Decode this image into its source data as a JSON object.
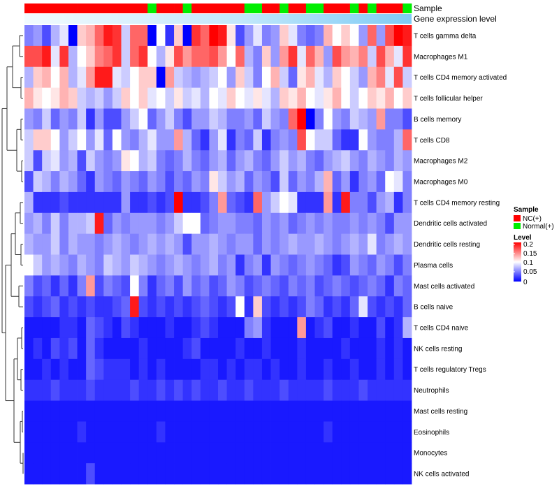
{
  "chart_data": {
    "type": "heatmap",
    "title": "",
    "annotation_labels": {
      "sample": "Sample",
      "gene": "Gene expression level"
    },
    "rows": [
      {
        "name": "T cells gamma delta",
        "values": [
          0.05,
          0.06,
          0.03,
          0.07,
          0.09,
          0.0,
          0.12,
          0.13,
          0.16,
          0.19,
          0.18,
          0.08,
          0.16,
          0.16,
          0.0,
          0.1,
          0.02,
          0.12,
          0.0,
          0.18,
          0.16,
          0.2,
          0.19,
          0.11,
          0.03,
          0.06,
          0.09,
          0.05,
          0.06,
          0.12,
          0.09,
          0.05,
          0.04,
          0.05,
          0.13,
          0.1,
          0.12,
          0.1,
          0.06,
          0.16,
          0.06,
          0.17,
          0.2,
          0.19
        ]
      },
      {
        "name": "Macrophages M1",
        "values": [
          0.17,
          0.17,
          0.19,
          0.09,
          0.18,
          0.07,
          0.1,
          0.12,
          0.15,
          0.16,
          0.18,
          0.08,
          0.16,
          0.18,
          0.1,
          0.07,
          0.11,
          0.17,
          0.14,
          0.16,
          0.16,
          0.17,
          0.14,
          0.1,
          0.16,
          0.07,
          0.05,
          0.12,
          0.06,
          0.14,
          0.18,
          0.09,
          0.16,
          0.13,
          0.06,
          0.17,
          0.14,
          0.13,
          0.15,
          0.08,
          0.17,
          0.13,
          0.09,
          0.18
        ]
      },
      {
        "name": "T cells CD4 memory activated",
        "values": [
          0.07,
          0.12,
          0.13,
          0.1,
          0.13,
          0.07,
          0.09,
          0.14,
          0.19,
          0.19,
          0.09,
          0.08,
          0.1,
          0.12,
          0.12,
          0.0,
          0.14,
          0.08,
          0.07,
          0.06,
          0.07,
          0.08,
          0.1,
          0.06,
          0.12,
          0.08,
          0.05,
          0.1,
          0.13,
          0.08,
          0.04,
          0.11,
          0.13,
          0.09,
          0.07,
          0.12,
          0.1,
          0.08,
          0.06,
          0.13,
          0.15,
          0.09,
          0.17,
          0.08
        ]
      },
      {
        "name": "T cells follicular helper",
        "values": [
          0.13,
          0.11,
          0.1,
          0.11,
          0.13,
          0.12,
          0.08,
          0.07,
          0.08,
          0.06,
          0.08,
          0.12,
          0.1,
          0.12,
          0.09,
          0.1,
          0.08,
          0.11,
          0.08,
          0.09,
          0.07,
          0.1,
          0.09,
          0.12,
          0.1,
          0.09,
          0.11,
          0.09,
          0.07,
          0.12,
          0.11,
          0.13,
          0.1,
          0.09,
          0.11,
          0.13,
          0.1,
          0.08,
          0.1,
          0.12,
          0.11,
          0.13,
          0.1,
          0.12
        ]
      },
      {
        "name": "B cells memory",
        "values": [
          0.06,
          0.05,
          0.08,
          0.04,
          0.06,
          0.05,
          0.08,
          0.02,
          0.06,
          0.03,
          0.03,
          0.06,
          0.08,
          0.1,
          0.04,
          0.06,
          0.08,
          0.05,
          0.03,
          0.06,
          0.06,
          0.08,
          0.07,
          0.05,
          0.05,
          0.06,
          0.04,
          0.08,
          0.06,
          0.05,
          0.16,
          0.2,
          0.0,
          0.05,
          0.1,
          0.06,
          0.05,
          0.08,
          0.07,
          0.06,
          0.14,
          0.05,
          0.05,
          0.03
        ]
      },
      {
        "name": "T cells CD8",
        "values": [
          0.08,
          0.12,
          0.12,
          0.1,
          0.06,
          0.08,
          0.1,
          0.06,
          0.09,
          0.04,
          0.1,
          0.06,
          0.05,
          0.07,
          0.09,
          0.06,
          0.06,
          0.14,
          0.07,
          0.04,
          0.02,
          0.06,
          0.09,
          0.02,
          0.05,
          0.04,
          0.08,
          0.02,
          0.05,
          0.06,
          0.05,
          0.17,
          0.1,
          0.08,
          0.08,
          0.04,
          0.02,
          0.02,
          0.1,
          0.06,
          0.05,
          0.05,
          0.07,
          0.16
        ]
      },
      {
        "name": "Macrophages M2",
        "values": [
          0.08,
          0.03,
          0.08,
          0.09,
          0.06,
          0.07,
          0.03,
          0.08,
          0.06,
          0.05,
          0.06,
          0.11,
          0.1,
          0.07,
          0.08,
          0.05,
          0.04,
          0.05,
          0.07,
          0.05,
          0.04,
          0.06,
          0.07,
          0.04,
          0.06,
          0.07,
          0.05,
          0.04,
          0.06,
          0.08,
          0.06,
          0.07,
          0.05,
          0.04,
          0.06,
          0.07,
          0.08,
          0.06,
          0.05,
          0.07,
          0.06,
          0.05,
          0.07,
          0.06
        ]
      },
      {
        "name": "Macrophages M0",
        "values": [
          0.03,
          0.08,
          0.07,
          0.05,
          0.07,
          0.06,
          0.04,
          0.02,
          0.06,
          0.05,
          0.04,
          0.06,
          0.05,
          0.04,
          0.06,
          0.05,
          0.03,
          0.05,
          0.04,
          0.06,
          0.05,
          0.11,
          0.08,
          0.06,
          0.07,
          0.04,
          0.06,
          0.05,
          0.03,
          0.08,
          0.04,
          0.06,
          0.05,
          0.07,
          0.13,
          0.04,
          0.06,
          0.02,
          0.05,
          0.06,
          0.04,
          0.1,
          0.09,
          0.05
        ]
      },
      {
        "name": "T cells CD4 memory resting",
        "values": [
          0.07,
          0.02,
          0.02,
          0.02,
          0.03,
          0.02,
          0.02,
          0.02,
          0.02,
          0.02,
          0.02,
          0.06,
          0.02,
          0.02,
          0.03,
          0.02,
          0.03,
          0.2,
          0.02,
          0.02,
          0.03,
          0.05,
          0.14,
          0.04,
          0.03,
          0.02,
          0.16,
          0.06,
          0.08,
          0.1,
          0.09,
          0.02,
          0.02,
          0.02,
          0.14,
          0.02,
          0.19,
          0.05,
          0.05,
          0.03,
          0.06,
          0.07,
          0.02,
          0.05
        ]
      },
      {
        "name": "Dendritic cells activated",
        "values": [
          0.06,
          0.07,
          0.05,
          0.08,
          0.05,
          0.07,
          0.07,
          0.08,
          0.19,
          0.04,
          0.06,
          0.05,
          0.06,
          0.06,
          0.06,
          0.05,
          0.06,
          0.08,
          0.1,
          0.1,
          0.04,
          0.05,
          0.06,
          0.06,
          0.05,
          0.05,
          0.04,
          0.06,
          0.05,
          0.06,
          0.04,
          0.05,
          0.06,
          0.05,
          0.06,
          0.05,
          0.05,
          0.06,
          0.05,
          0.06,
          0.05,
          0.03,
          0.06,
          0.06
        ]
      },
      {
        "name": "Dendritic cells resting",
        "values": [
          0.07,
          0.06,
          0.06,
          0.08,
          0.05,
          0.07,
          0.06,
          0.06,
          0.05,
          0.06,
          0.07,
          0.06,
          0.05,
          0.06,
          0.07,
          0.06,
          0.07,
          0.06,
          0.03,
          0.06,
          0.06,
          0.07,
          0.06,
          0.05,
          0.06,
          0.06,
          0.04,
          0.06,
          0.05,
          0.06,
          0.07,
          0.06,
          0.06,
          0.07,
          0.06,
          0.05,
          0.06,
          0.07,
          0.06,
          0.09,
          0.05,
          0.06,
          0.07,
          0.06
        ]
      },
      {
        "name": "Plasma cells",
        "values": [
          0.1,
          0.08,
          0.06,
          0.07,
          0.06,
          0.05,
          0.07,
          0.06,
          0.05,
          0.08,
          0.07,
          0.06,
          0.08,
          0.07,
          0.06,
          0.05,
          0.06,
          0.07,
          0.06,
          0.05,
          0.06,
          0.07,
          0.05,
          0.06,
          0.02,
          0.05,
          0.06,
          0.02,
          0.06,
          0.05,
          0.04,
          0.05,
          0.06,
          0.05,
          0.04,
          0.02,
          0.03,
          0.06,
          0.05,
          0.04,
          0.06,
          0.05,
          0.03,
          0.05
        ]
      },
      {
        "name": "Mast cells activated",
        "values": [
          0.05,
          0.03,
          0.04,
          0.02,
          0.04,
          0.02,
          0.05,
          0.14,
          0.03,
          0.05,
          0.04,
          0.03,
          0.1,
          0.05,
          0.02,
          0.04,
          0.05,
          0.03,
          0.06,
          0.04,
          0.05,
          0.03,
          0.04,
          0.06,
          0.05,
          0.03,
          0.04,
          0.05,
          0.04,
          0.03,
          0.05,
          0.04,
          0.05,
          0.03,
          0.04,
          0.05,
          0.04,
          0.03,
          0.04,
          0.05,
          0.04,
          0.02,
          0.05,
          0.04
        ]
      },
      {
        "name": "B cells naive",
        "values": [
          0.03,
          0.02,
          0.03,
          0.04,
          0.02,
          0.03,
          0.02,
          0.03,
          0.02,
          0.02,
          0.03,
          0.04,
          0.19,
          0.03,
          0.02,
          0.03,
          0.02,
          0.03,
          0.02,
          0.03,
          0.04,
          0.03,
          0.02,
          0.03,
          0.1,
          0.02,
          0.12,
          0.03,
          0.02,
          0.03,
          0.02,
          0.03,
          0.05,
          0.04,
          0.02,
          0.03,
          0.02,
          0.04,
          0.09,
          0.03,
          0.02,
          0.03,
          0.02,
          0.04
        ]
      },
      {
        "name": "T cells CD4 naive",
        "values": [
          0.01,
          0.01,
          0.01,
          0.01,
          0.02,
          0.02,
          0.01,
          0.04,
          0.03,
          0.02,
          0.01,
          0.03,
          0.02,
          0.01,
          0.01,
          0.01,
          0.02,
          0.01,
          0.01,
          0.02,
          0.03,
          0.02,
          0.01,
          0.01,
          0.01,
          0.05,
          0.06,
          0.02,
          0.01,
          0.01,
          0.01,
          0.14,
          0.01,
          0.02,
          0.03,
          0.01,
          0.01,
          0.02,
          0.01,
          0.01,
          0.03,
          0.01,
          0.02,
          0.07
        ]
      },
      {
        "name": "NK cells resting",
        "values": [
          0.01,
          0.02,
          0.01,
          0.03,
          0.02,
          0.03,
          0.01,
          0.04,
          0.02,
          0.01,
          0.01,
          0.01,
          0.01,
          0.02,
          0.01,
          0.01,
          0.01,
          0.01,
          0.02,
          0.03,
          0.01,
          0.01,
          0.01,
          0.01,
          0.02,
          0.01,
          0.01,
          0.02,
          0.01,
          0.01,
          0.01,
          0.02,
          0.01,
          0.01,
          0.01,
          0.01,
          0.02,
          0.01,
          0.01,
          0.01,
          0.02,
          0.01,
          0.02,
          0.01
        ]
      },
      {
        "name": "T cells regulatory  Tregs",
        "values": [
          0.01,
          0.01,
          0.02,
          0.01,
          0.02,
          0.01,
          0.01,
          0.04,
          0.03,
          0.02,
          0.02,
          0.02,
          0.01,
          0.02,
          0.01,
          0.02,
          0.01,
          0.01,
          0.01,
          0.01,
          0.02,
          0.02,
          0.01,
          0.02,
          0.01,
          0.02,
          0.02,
          0.01,
          0.02,
          0.01,
          0.01,
          0.02,
          0.01,
          0.01,
          0.02,
          0.01,
          0.01,
          0.02,
          0.01,
          0.01,
          0.02,
          0.01,
          0.02,
          0.01
        ]
      },
      {
        "name": "Neutrophils",
        "values": [
          0.02,
          0.02,
          0.02,
          0.03,
          0.02,
          0.02,
          0.02,
          0.03,
          0.02,
          0.02,
          0.02,
          0.02,
          0.03,
          0.02,
          0.02,
          0.03,
          0.02,
          0.03,
          0.02,
          0.03,
          0.02,
          0.02,
          0.03,
          0.02,
          0.02,
          0.03,
          0.02,
          0.02,
          0.02,
          0.03,
          0.02,
          0.02,
          0.02,
          0.02,
          0.03,
          0.02,
          0.02,
          0.02,
          0.03,
          0.02,
          0.02,
          0.02,
          0.02,
          0.02
        ]
      },
      {
        "name": "Mast cells resting",
        "values": [
          0.01,
          0.01,
          0.01,
          0.01,
          0.01,
          0.01,
          0.01,
          0.01,
          0.01,
          0.01,
          0.01,
          0.01,
          0.01,
          0.01,
          0.01,
          0.01,
          0.01,
          0.01,
          0.01,
          0.01,
          0.01,
          0.01,
          0.01,
          0.01,
          0.01,
          0.01,
          0.01,
          0.01,
          0.01,
          0.01,
          0.01,
          0.01,
          0.01,
          0.01,
          0.01,
          0.01,
          0.01,
          0.01,
          0.01,
          0.01,
          0.01,
          0.01,
          0.01,
          0.01
        ]
      },
      {
        "name": "Eosinophils",
        "values": [
          0.01,
          0.01,
          0.01,
          0.01,
          0.01,
          0.01,
          0.02,
          0.01,
          0.01,
          0.01,
          0.01,
          0.01,
          0.01,
          0.01,
          0.01,
          0.02,
          0.01,
          0.01,
          0.01,
          0.01,
          0.01,
          0.01,
          0.01,
          0.01,
          0.01,
          0.01,
          0.01,
          0.01,
          0.01,
          0.01,
          0.01,
          0.01,
          0.01,
          0.01,
          0.02,
          0.01,
          0.01,
          0.01,
          0.01,
          0.01,
          0.01,
          0.01,
          0.01,
          0.01
        ]
      },
      {
        "name": "Monocytes",
        "values": [
          0.01,
          0.01,
          0.01,
          0.01,
          0.01,
          0.01,
          0.01,
          0.01,
          0.01,
          0.01,
          0.01,
          0.01,
          0.01,
          0.01,
          0.01,
          0.01,
          0.01,
          0.01,
          0.01,
          0.01,
          0.01,
          0.01,
          0.01,
          0.01,
          0.01,
          0.01,
          0.01,
          0.01,
          0.01,
          0.01,
          0.01,
          0.01,
          0.01,
          0.01,
          0.01,
          0.01,
          0.01,
          0.01,
          0.01,
          0.01,
          0.01,
          0.01,
          0.01,
          0.01
        ]
      },
      {
        "name": "NK cells activated",
        "values": [
          0.01,
          0.01,
          0.01,
          0.01,
          0.01,
          0.01,
          0.01,
          0.03,
          0.01,
          0.01,
          0.01,
          0.01,
          0.01,
          0.01,
          0.01,
          0.01,
          0.01,
          0.01,
          0.01,
          0.01,
          0.01,
          0.01,
          0.01,
          0.01,
          0.01,
          0.01,
          0.01,
          0.01,
          0.01,
          0.01,
          0.01,
          0.01,
          0.01,
          0.01,
          0.01,
          0.01,
          0.01,
          0.01,
          0.01,
          0.01,
          0.01,
          0.01,
          0.01,
          0.01
        ]
      }
    ],
    "sample_groups": [
      "NC",
      "NC",
      "NC",
      "NC",
      "NC",
      "NC",
      "NC",
      "NC",
      "NC",
      "NC",
      "NC",
      "NC",
      "NC",
      "NC",
      "Normal",
      "NC",
      "NC",
      "NC",
      "Normal",
      "NC",
      "NC",
      "NC",
      "NC",
      "NC",
      "NC",
      "Normal",
      "Normal",
      "NC",
      "NC",
      "Normal",
      "NC",
      "NC",
      "Normal",
      "Normal",
      "NC",
      "NC",
      "NC",
      "Normal",
      "NC",
      "Normal",
      "NC",
      "NC",
      "NC",
      "Normal"
    ],
    "legend": {
      "sample": {
        "title": "Sample",
        "entries": [
          {
            "label": "NC(+)",
            "color": "#ff0000"
          },
          {
            "label": "Normal(+)",
            "color": "#00ee00"
          }
        ]
      },
      "level": {
        "title": "Level",
        "ticks": [
          "0.2",
          "0.15",
          "0.1",
          "0.05",
          "0"
        ]
      }
    },
    "value_range": [
      0,
      0.2
    ],
    "colors": {
      "low": "#0000ff",
      "mid": "#ffffff",
      "high": "#ff0000",
      "nc": "#ff0000",
      "normal": "#00ee00",
      "gene_bar": "#7ecbf5"
    }
  }
}
